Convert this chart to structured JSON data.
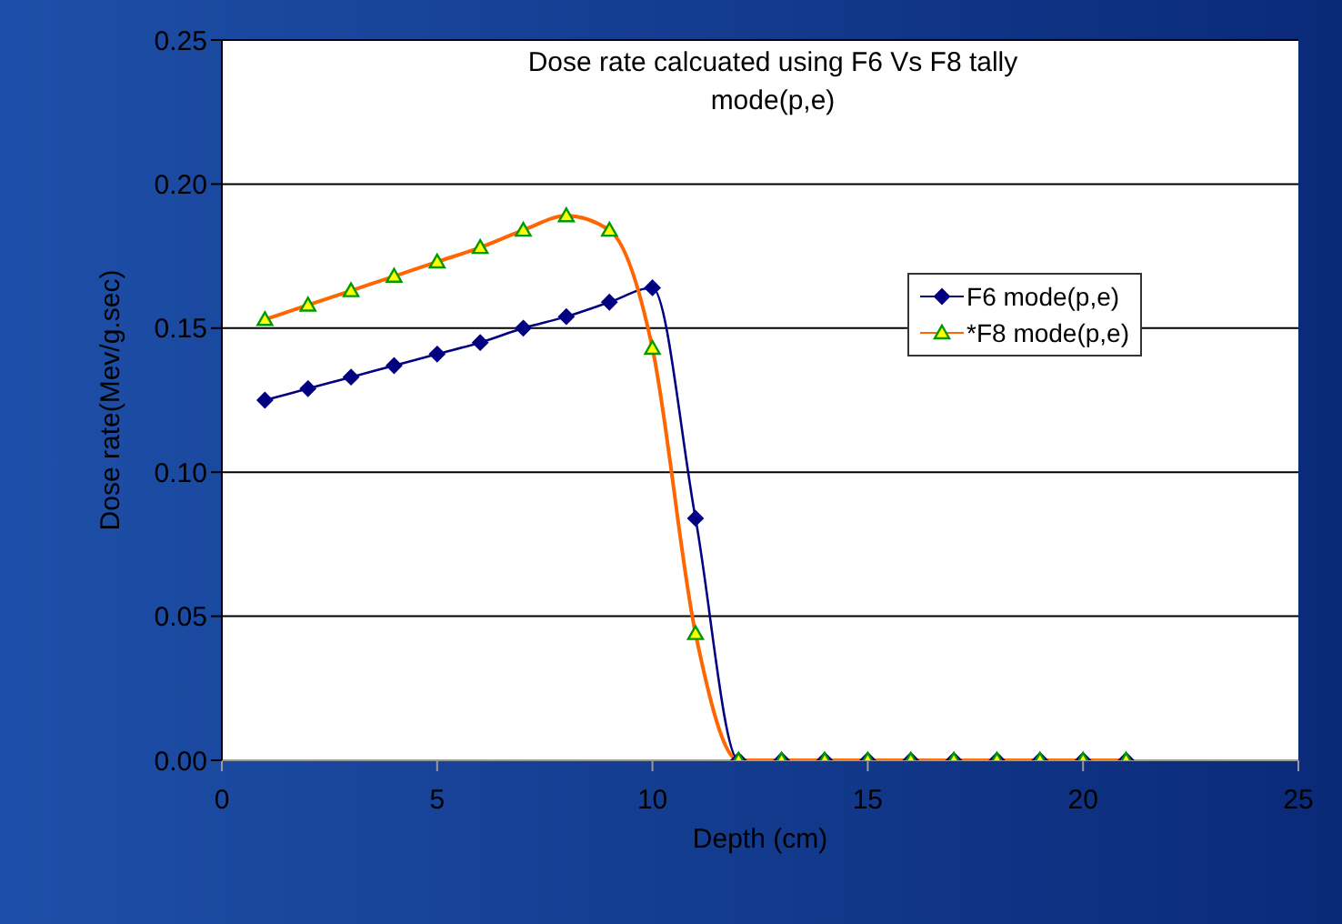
{
  "chart_data": {
    "type": "line",
    "title": "Dose rate calcuated using F6 Vs F8 tally mode(p,e)",
    "xlabel": "Depth (cm)",
    "ylabel": "Dose rate(Mev/g.sec)",
    "x": [
      1,
      2,
      3,
      4,
      5,
      6,
      7,
      8,
      9,
      10,
      11,
      12,
      13,
      14,
      15,
      16,
      17,
      18,
      19,
      20,
      21
    ],
    "series": [
      {
        "name": "F6 mode(p,e)",
        "color": "#000080",
        "marker": "diamond",
        "values": [
          0.125,
          0.129,
          0.133,
          0.137,
          0.141,
          0.145,
          0.15,
          0.154,
          0.159,
          0.164,
          0.084,
          0,
          0,
          0,
          0,
          0,
          0,
          0,
          0,
          0,
          0
        ]
      },
      {
        "name": "*F8 mode(p,e)",
        "color": "#ff6600",
        "marker": "triangle",
        "values": [
          0.153,
          0.158,
          0.163,
          0.168,
          0.173,
          0.178,
          0.184,
          0.189,
          0.184,
          0.143,
          0.044,
          0,
          0,
          0,
          0,
          0,
          0,
          0,
          0,
          0,
          0
        ]
      }
    ],
    "xlim": [
      0,
      25
    ],
    "xticks": [
      0,
      5,
      10,
      15,
      20,
      25
    ],
    "ylim": [
      0,
      0.25
    ],
    "yticks": [
      {
        "value": 0,
        "label": "0.00"
      },
      {
        "value": 0.05,
        "label": "0.05"
      },
      {
        "value": 0.1,
        "label": "0.10"
      },
      {
        "value": 0.15,
        "label": "0.15"
      },
      {
        "value": 0.2,
        "label": "0.20"
      },
      {
        "value": 0.25,
        "label": "0.25"
      }
    ],
    "grid": "y",
    "legend": "right"
  }
}
